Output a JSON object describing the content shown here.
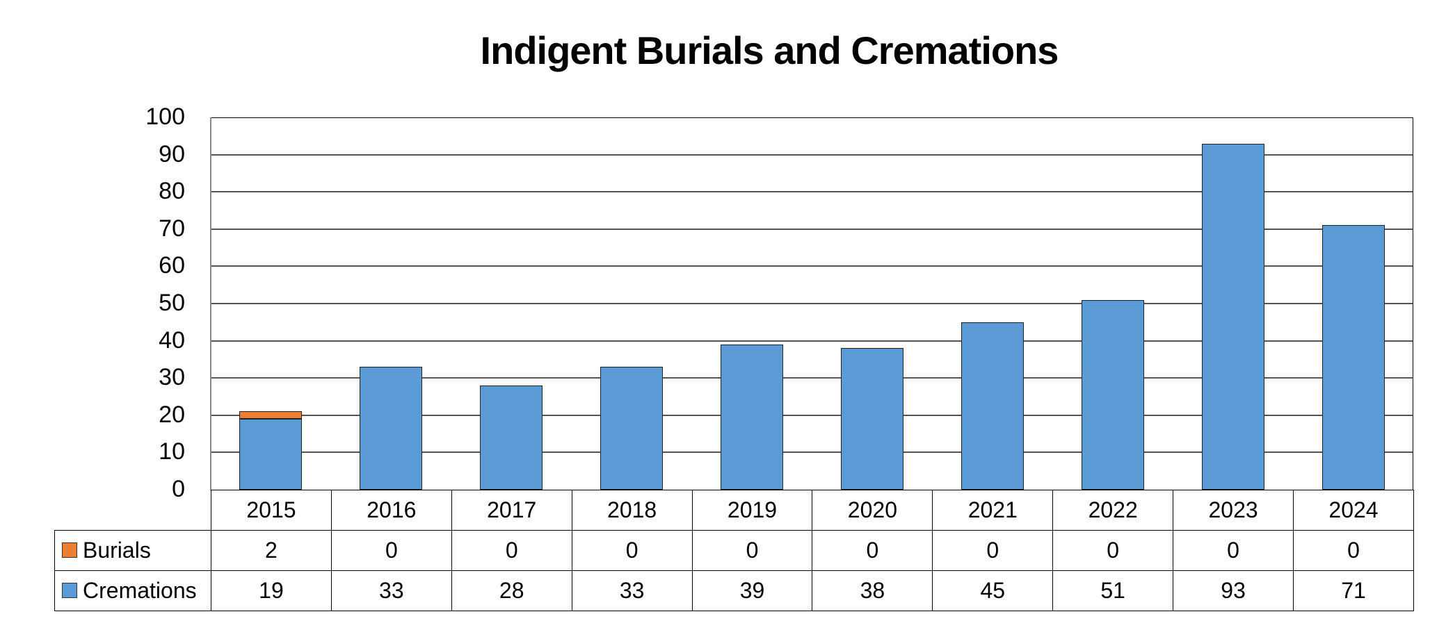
{
  "chart_data": {
    "type": "bar",
    "stacked": true,
    "title": "Indigent Burials and Cremations",
    "xlabel": "",
    "ylabel": "",
    "ylim": [
      0,
      100
    ],
    "yticks": [
      0,
      10,
      20,
      30,
      40,
      50,
      60,
      70,
      80,
      90,
      100
    ],
    "grid": true,
    "legend_position": "data-table",
    "categories": [
      "2015",
      "2016",
      "2017",
      "2018",
      "2019",
      "2020",
      "2021",
      "2022",
      "2023",
      "2024"
    ],
    "series": [
      {
        "name": "Burials",
        "color": "#ed7d31",
        "values": [
          2,
          0,
          0,
          0,
          0,
          0,
          0,
          0,
          0,
          0
        ]
      },
      {
        "name": "Cremations",
        "color": "#5b9bd5",
        "values": [
          19,
          33,
          28,
          33,
          39,
          38,
          45,
          51,
          93,
          71
        ]
      }
    ],
    "data_table": true
  },
  "title": "Indigent Burials and Cremations",
  "yaxis": {
    "ticks": [
      "100",
      "90",
      "80",
      "70",
      "60",
      "50",
      "40",
      "30",
      "20",
      "10",
      "0"
    ]
  },
  "table": {
    "years": [
      "2015",
      "2016",
      "2017",
      "2018",
      "2019",
      "2020",
      "2021",
      "2022",
      "2023",
      "2024"
    ],
    "burials": {
      "label": "Burials",
      "color": "#ed7d31",
      "values": [
        "2",
        "0",
        "0",
        "0",
        "0",
        "0",
        "0",
        "0",
        "0",
        "0"
      ]
    },
    "cremations": {
      "label": "Cremations",
      "color": "#5b9bd5",
      "values": [
        "19",
        "33",
        "28",
        "33",
        "39",
        "38",
        "45",
        "51",
        "93",
        "71"
      ]
    }
  }
}
